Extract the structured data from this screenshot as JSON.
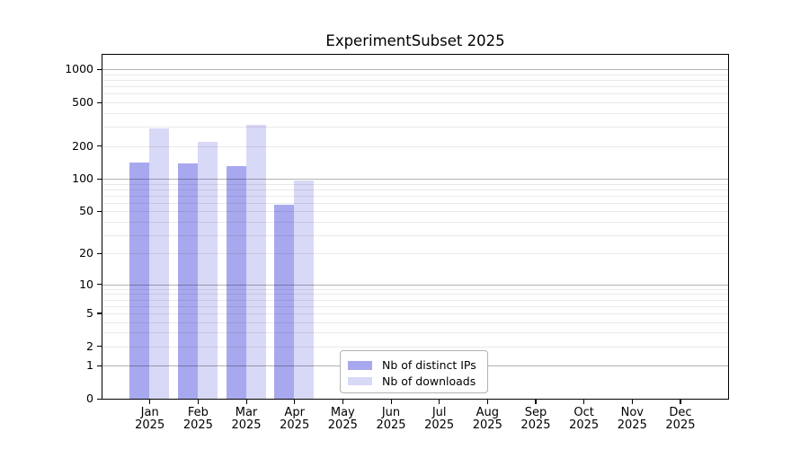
{
  "figure": {
    "background": "#ffffff"
  },
  "chart_data": {
    "type": "bar",
    "title": "ExperimentSubset 2025",
    "xlabel": "",
    "ylabel": "",
    "categories": [
      "Jan",
      "Feb",
      "Mar",
      "Apr",
      "May",
      "Jun",
      "Jul",
      "Aug",
      "Sep",
      "Oct",
      "Nov",
      "Dec"
    ],
    "x_tick_year": "2025",
    "series": [
      {
        "name": "Nb of distinct IPs",
        "color": "#a8a8ef",
        "values": [
          140,
          138,
          130,
          57,
          0,
          0,
          0,
          0,
          0,
          0,
          0,
          0
        ]
      },
      {
        "name": "Nb of downloads",
        "color": "#d8d8f7",
        "values": [
          290,
          218,
          312,
          96,
          0,
          0,
          0,
          0,
          0,
          0,
          0,
          0
        ]
      }
    ],
    "y_axis": {
      "scale": "log1p",
      "tick_values": [
        0,
        1,
        2,
        5,
        10,
        20,
        50,
        100,
        200,
        500,
        1000
      ],
      "min": 0,
      "max": 1360,
      "major_grid_at": [
        1,
        10,
        100,
        1000
      ]
    },
    "grid": {
      "horizontal_major": true,
      "horizontal_minor": true,
      "vertical": false
    },
    "legend": {
      "position": "lower-center",
      "entries": [
        "Nb of distinct IPs",
        "Nb of downloads"
      ]
    }
  }
}
